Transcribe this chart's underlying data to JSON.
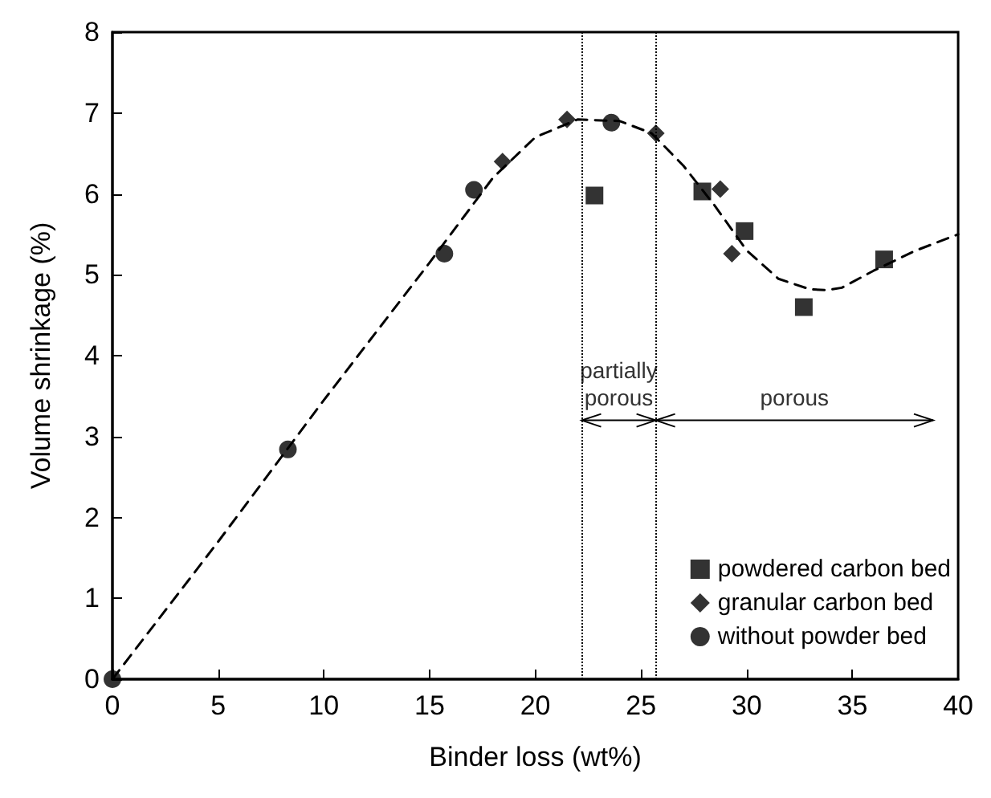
{
  "chart_data": {
    "type": "scatter",
    "xlabel": "Binder loss (wt%)",
    "ylabel": "Volume shrinkage (%)",
    "xlim": [
      0,
      40
    ],
    "xticks": [
      0,
      5,
      10,
      15,
      20,
      25,
      30,
      35,
      40
    ],
    "ylim": [
      0,
      8
    ],
    "yticks": [
      0,
      1,
      2,
      3,
      4,
      5,
      6,
      7,
      8
    ],
    "grid": false,
    "legend": "bottom right",
    "series": [
      {
        "name": "powdered carbon bed",
        "color": "#000000",
        "marker": "square",
        "x": [
          22.8,
          27.9,
          29.9,
          32.7,
          36.5
        ],
        "values": [
          5.98,
          6.03,
          5.54,
          4.6,
          5.19
        ]
      },
      {
        "name": "granular carbon bed",
        "color": "#000000",
        "marker": "diamond",
        "x": [
          18.45,
          21.5,
          25.7,
          28.75,
          29.3
        ],
        "values": [
          6.4,
          6.92,
          6.75,
          6.06,
          5.26
        ]
      },
      {
        "name": "without powder bed",
        "color": "#000000",
        "marker": "circle",
        "x": [
          0,
          8.3,
          15.7,
          17.1,
          23.6
        ],
        "values": [
          0,
          2.84,
          5.26,
          6.05,
          6.88
        ]
      },
      {
        "type": "line",
        "color": "#000000",
        "marker": "none",
        "line_style": "dashed",
        "x": [
          0,
          5,
          10,
          15,
          18,
          20,
          22,
          24,
          25.5,
          27,
          28.5,
          30,
          31.5,
          33,
          33.75,
          34.5,
          36,
          38,
          40
        ],
        "values": [
          0,
          1.7,
          3.45,
          5.15,
          6.2,
          6.7,
          6.92,
          6.9,
          6.75,
          6.35,
          5.85,
          5.3,
          4.95,
          4.82,
          4.81,
          4.84,
          5.05,
          5.3,
          5.5
        ]
      }
    ],
    "ref_lines": [
      {
        "axis": "x",
        "value": 22.2,
        "color": "#000000",
        "line_style": "dotted"
      },
      {
        "axis": "x",
        "value": 25.7,
        "color": "#000000",
        "line_style": "dotted"
      }
    ],
    "annotations": [
      "partially\nporous",
      "porous"
    ]
  }
}
